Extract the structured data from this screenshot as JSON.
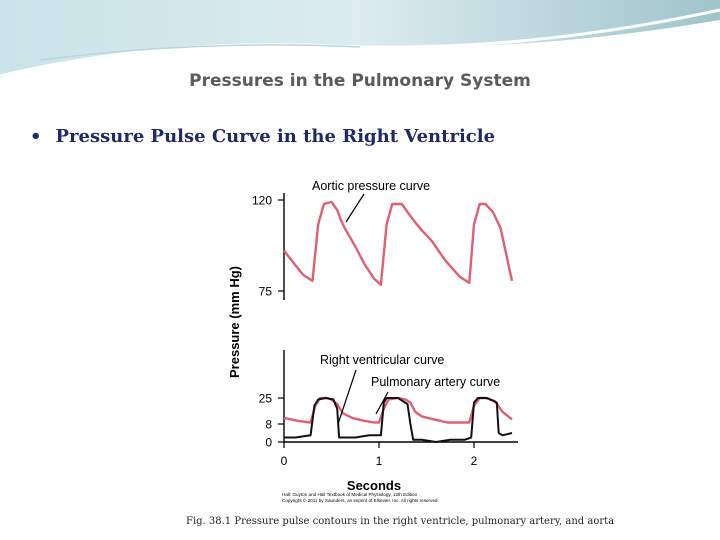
{
  "slide": {
    "title": "Pressures in the Pulmonary System",
    "bullet": "Pressure Pulse Curve in the Right Ventricle",
    "caption": "Fig. 38.1 Pressure pulse contours in the right ventricle, pulmonary artery, and aorta",
    "credit_lines": [
      "Hall: Guyton and Hall Textbook of Medical Physiology, 12th Edition",
      "Copyright © 2011 by Saunders, an imprint of Elsevier, Inc. All rights reserved."
    ]
  },
  "chart_data": {
    "type": "line",
    "xlabel": "Seconds",
    "ylabel": "Pressure (mm Hg)",
    "x_ticks": [
      "0",
      "1",
      "2"
    ],
    "y_ticks": [
      "120",
      "75",
      "25",
      "8",
      "0"
    ],
    "xlim": [
      0,
      2.4
    ],
    "ylim": [
      0,
      120
    ],
    "annotations": [
      {
        "text": "Aortic pressure curve",
        "points_to_series": "aortic"
      },
      {
        "text": "Right ventricular curve",
        "points_to_series": "right_ventricular"
      },
      {
        "text": "Pulmonary artery curve",
        "points_to_series": "pulmonary_artery"
      }
    ],
    "series": [
      {
        "key": "aortic",
        "color": "#e06070",
        "x": [
          0,
          0.1,
          0.2,
          0.3,
          0.36,
          0.42,
          0.5,
          0.56,
          0.6,
          0.64,
          0.75,
          0.85,
          0.95,
          1.02,
          1.08,
          1.14,
          1.24,
          1.3,
          1.38,
          1.45,
          1.55,
          1.7,
          1.85,
          1.95,
          2.0,
          2.06,
          2.12,
          2.2,
          2.28,
          2.4
        ],
        "y": [
          95,
          89,
          83,
          80,
          108,
          118,
          119,
          115,
          110,
          106,
          97,
          88,
          81,
          78,
          108,
          118,
          118,
          114,
          109,
          105,
          100,
          90,
          82,
          79,
          108,
          118,
          118,
          114,
          106,
          80
        ]
      },
      {
        "key": "pulmonary_artery",
        "color": "#e06070",
        "x": [
          0,
          0.15,
          0.28,
          0.33,
          0.38,
          0.45,
          0.5,
          0.56,
          0.62,
          0.72,
          0.85,
          0.95,
          1.0,
          1.05,
          1.1,
          1.2,
          1.28,
          1.33,
          1.38,
          1.45,
          1.58,
          1.72,
          1.85,
          1.95,
          2.0,
          2.06,
          2.12,
          2.22,
          2.3,
          2.4
        ],
        "y": [
          12,
          10,
          9,
          20,
          25,
          25,
          24,
          21,
          15,
          12,
          10,
          9,
          9,
          18,
          24,
          25,
          24,
          22,
          16,
          13,
          11,
          9,
          9,
          9,
          20,
          25,
          25,
          23,
          16,
          11
        ]
      },
      {
        "key": "right_ventricular",
        "color": "#111111",
        "x": [
          0,
          0.12,
          0.28,
          0.32,
          0.36,
          0.44,
          0.52,
          0.56,
          0.58,
          0.62,
          0.75,
          0.9,
          1.02,
          1.05,
          1.08,
          1.2,
          1.3,
          1.33,
          1.36,
          1.45,
          1.6,
          1.75,
          1.9,
          1.97,
          2.0,
          2.04,
          2.14,
          2.24,
          2.26,
          2.3,
          2.4
        ],
        "y": [
          2,
          2,
          3,
          20,
          24,
          25,
          24,
          18,
          2,
          2,
          2,
          3,
          3,
          22,
          25,
          25,
          21,
          8,
          1,
          1,
          0,
          1,
          1,
          2,
          22,
          25,
          25,
          22,
          4,
          3,
          4
        ]
      }
    ]
  }
}
